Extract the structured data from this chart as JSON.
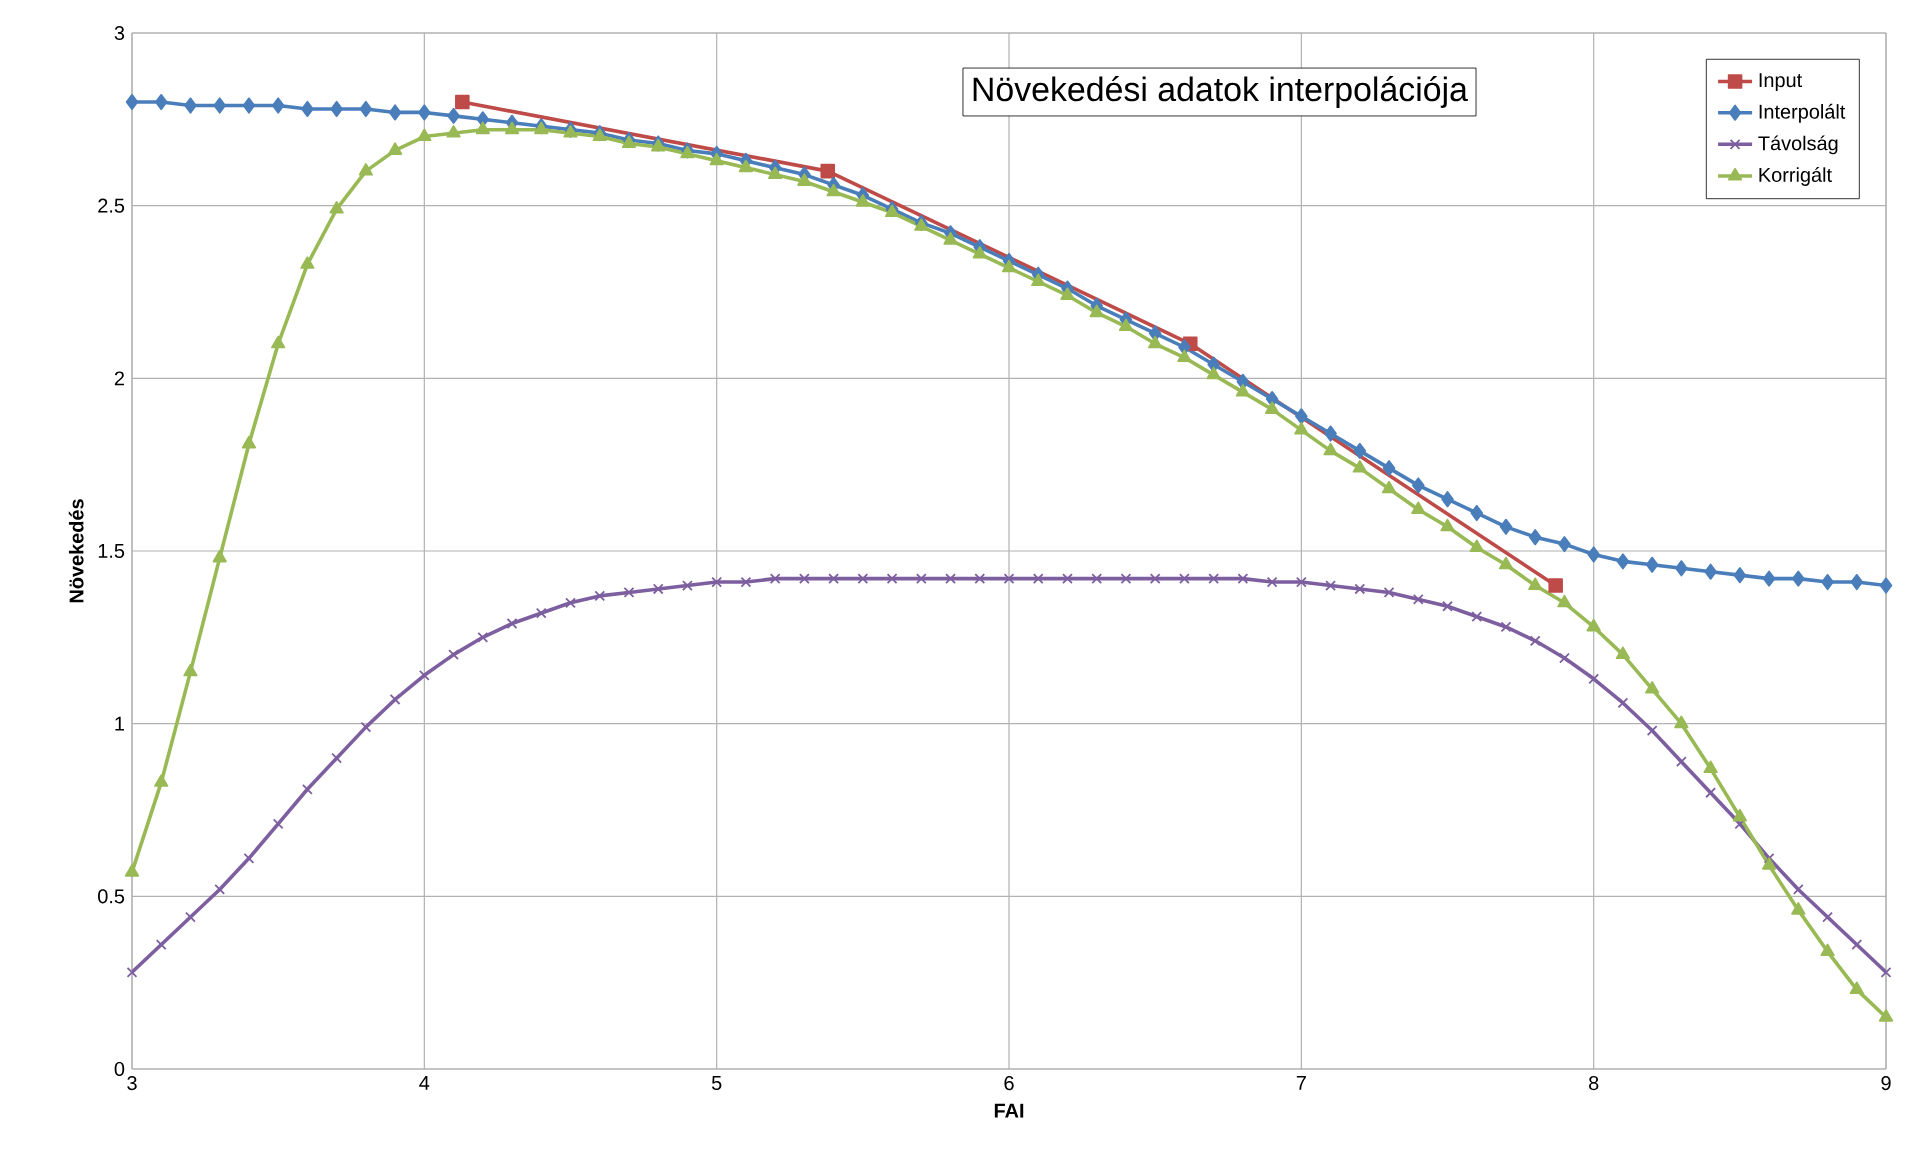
{
  "chart_data": {
    "type": "line",
    "title": "Növekedési adatok interpolációja",
    "xlabel": "FAI",
    "ylabel": "Növekedés",
    "xlim": [
      3,
      9
    ],
    "xticks": [
      3,
      4,
      5,
      6,
      7,
      8,
      9
    ],
    "ylim": [
      0,
      3
    ],
    "yticks": [
      0,
      0.5,
      1,
      1.5,
      2,
      2.5,
      3
    ],
    "grid": true,
    "legend": "top right",
    "line_style": "solid",
    "x": [
      3.0,
      3.1,
      3.2,
      3.3,
      3.4,
      3.5,
      3.6,
      3.7,
      3.8,
      3.9,
      4.0,
      4.1,
      4.2,
      4.3,
      4.4,
      4.5,
      4.6,
      4.7,
      4.8,
      4.9,
      5.0,
      5.1,
      5.2,
      5.3,
      5.4,
      5.5,
      5.6,
      5.7,
      5.8,
      5.9,
      6.0,
      6.1,
      6.2,
      6.3,
      6.4,
      6.5,
      6.6,
      6.7,
      6.8,
      6.9,
      7.0,
      7.1,
      7.2,
      7.3,
      7.4,
      7.5,
      7.6,
      7.7,
      7.8,
      7.9,
      8.0,
      8.1,
      8.2,
      8.3,
      8.4,
      8.5,
      8.6,
      8.7,
      8.8,
      8.9,
      9.0
    ],
    "series": [
      {
        "name": "Input",
        "color": "#be4b48",
        "marker": "square",
        "x": [
          4.13,
          5.38,
          6.62,
          7.87
        ],
        "values": [
          2.8,
          2.6,
          2.1,
          1.4
        ]
      },
      {
        "name": "Interpolált",
        "color": "#4a7ebb",
        "marker": "diamond",
        "values": [
          2.8,
          2.8,
          2.79,
          2.79,
          2.79,
          2.79,
          2.78,
          2.78,
          2.78,
          2.77,
          2.77,
          2.76,
          2.75,
          2.74,
          2.73,
          2.72,
          2.71,
          2.69,
          2.68,
          2.66,
          2.65,
          2.63,
          2.61,
          2.59,
          2.56,
          2.53,
          2.49,
          2.45,
          2.42,
          2.38,
          2.34,
          2.3,
          2.26,
          2.21,
          2.17,
          2.13,
          2.09,
          2.04,
          1.99,
          1.94,
          1.89,
          1.84,
          1.79,
          1.74,
          1.69,
          1.65,
          1.61,
          1.57,
          1.54,
          1.52,
          1.49,
          1.47,
          1.46,
          1.45,
          1.44,
          1.43,
          1.42,
          1.42,
          1.41,
          1.41,
          1.4
        ]
      },
      {
        "name": "Távolság",
        "color": "#7d5fa0",
        "marker": "cross",
        "values": [
          0.28,
          0.36,
          0.44,
          0.52,
          0.61,
          0.71,
          0.81,
          0.9,
          0.99,
          1.07,
          1.14,
          1.2,
          1.25,
          1.29,
          1.32,
          1.35,
          1.37,
          1.38,
          1.39,
          1.4,
          1.41,
          1.41,
          1.42,
          1.42,
          1.42,
          1.42,
          1.42,
          1.42,
          1.42,
          1.42,
          1.42,
          1.42,
          1.42,
          1.42,
          1.42,
          1.42,
          1.42,
          1.42,
          1.42,
          1.41,
          1.41,
          1.4,
          1.39,
          1.38,
          1.36,
          1.34,
          1.31,
          1.28,
          1.24,
          1.19,
          1.13,
          1.06,
          0.98,
          0.89,
          0.8,
          0.71,
          0.61,
          0.52,
          0.44,
          0.36,
          0.28
        ]
      },
      {
        "name": "Korrigált",
        "color": "#98b954",
        "marker": "triangle",
        "values": [
          0.57,
          0.83,
          1.15,
          1.48,
          1.81,
          2.1,
          2.33,
          2.49,
          2.6,
          2.66,
          2.7,
          2.71,
          2.72,
          2.72,
          2.72,
          2.71,
          2.7,
          2.68,
          2.67,
          2.65,
          2.63,
          2.61,
          2.59,
          2.57,
          2.54,
          2.51,
          2.48,
          2.44,
          2.4,
          2.36,
          2.32,
          2.28,
          2.24,
          2.19,
          2.15,
          2.1,
          2.06,
          2.01,
          1.96,
          1.91,
          1.85,
          1.79,
          1.74,
          1.68,
          1.62,
          1.57,
          1.51,
          1.46,
          1.4,
          1.35,
          1.28,
          1.2,
          1.1,
          1.0,
          0.87,
          0.73,
          0.59,
          0.46,
          0.34,
          0.23,
          0.15
        ]
      }
    ]
  }
}
